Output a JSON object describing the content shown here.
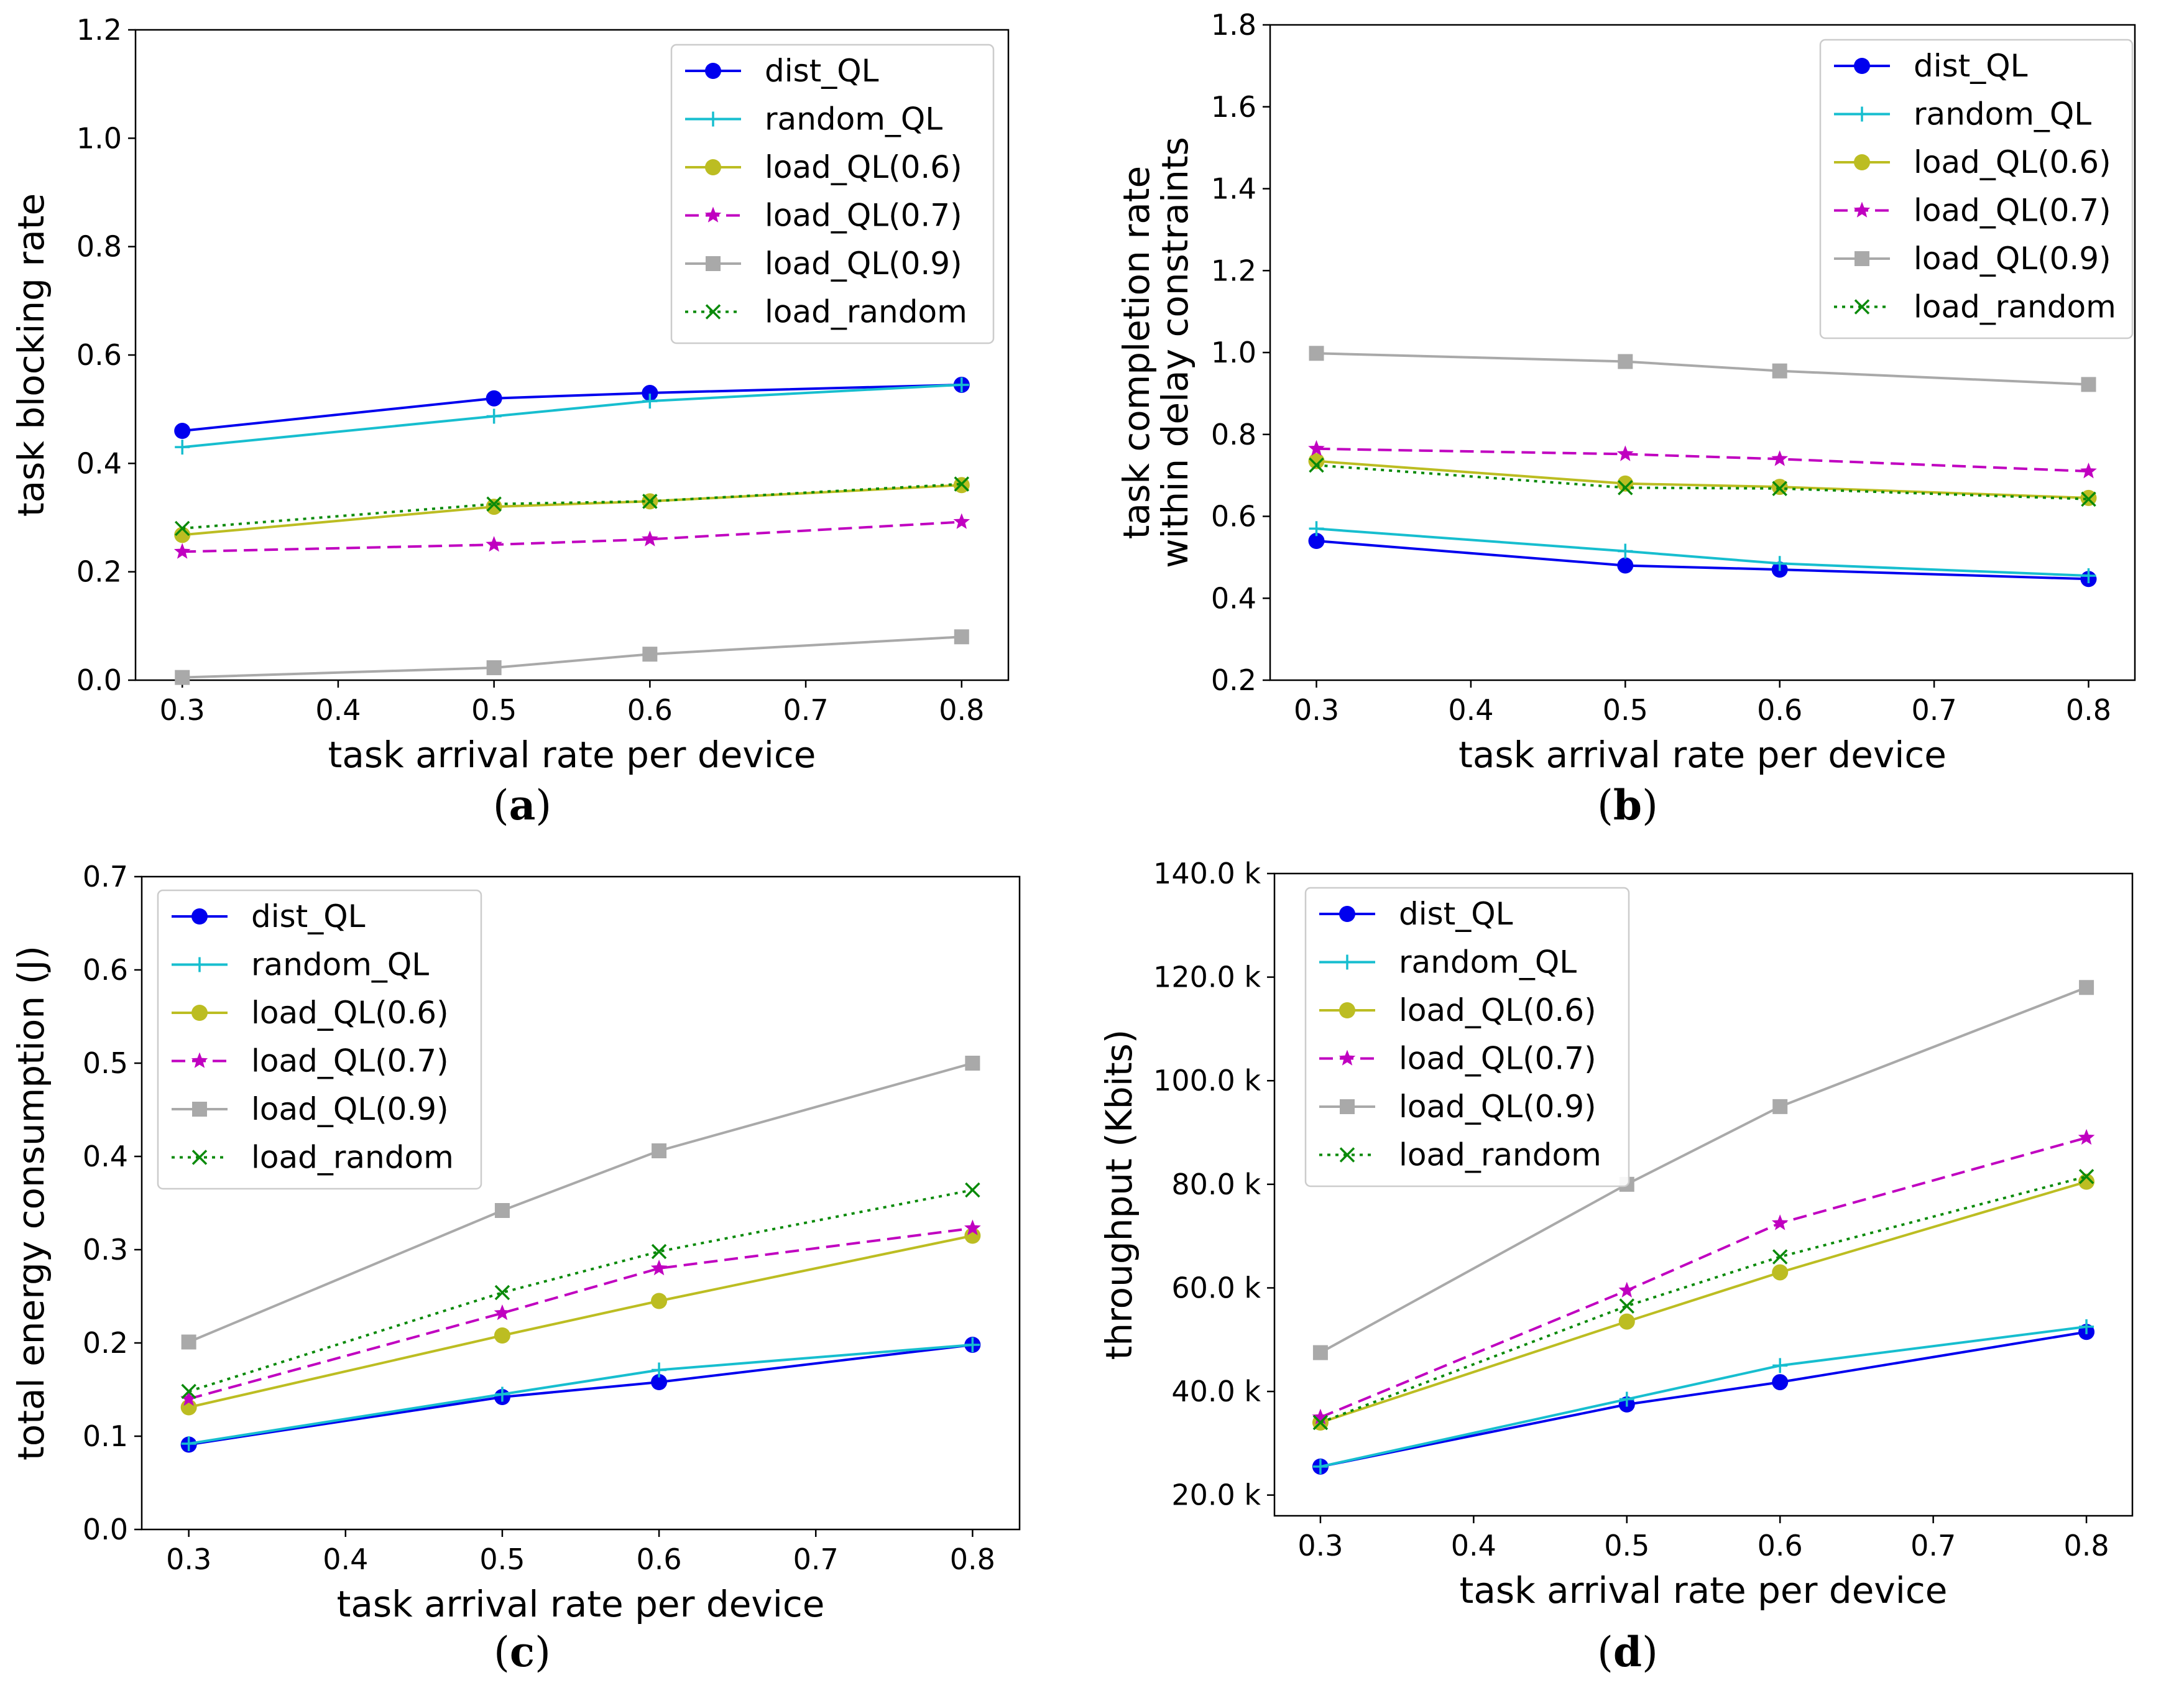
{
  "chart_data": [
    {
      "type": "line",
      "caption": "a",
      "xlabel": "task arrival rate per device",
      "ylabel": [
        "task blocking rate"
      ],
      "x": [
        0.3,
        0.5,
        0.6,
        0.8
      ],
      "xlim": [
        0.27,
        0.83
      ],
      "xticks": [
        0.3,
        0.4,
        0.5,
        0.6,
        0.7,
        0.8
      ],
      "xtick_labels": [
        "0.3",
        "0.4",
        "0.5",
        "0.6",
        "0.7",
        "0.8"
      ],
      "ylim": [
        0.0,
        1.2
      ],
      "yticks": [
        0.0,
        0.2,
        0.4,
        0.6,
        0.8,
        1.0,
        1.2
      ],
      "ytick_labels": [
        "0.0",
        "0.2",
        "0.4",
        "0.6",
        "0.8",
        "1.0",
        "1.2"
      ],
      "legend_loc": "top-right",
      "series": [
        {
          "name": "dist_QL",
          "values": [
            0.46,
            0.52,
            0.53,
            0.545
          ]
        },
        {
          "name": "random_QL",
          "values": [
            0.43,
            0.487,
            0.515,
            0.545
          ]
        },
        {
          "name": "load_QL(0.6)",
          "values": [
            0.268,
            0.32,
            0.33,
            0.36
          ]
        },
        {
          "name": "load_QL(0.7)",
          "values": [
            0.237,
            0.25,
            0.26,
            0.292
          ]
        },
        {
          "name": "load_QL(0.9)",
          "values": [
            0.005,
            0.023,
            0.048,
            0.08
          ]
        },
        {
          "name": "load_random",
          "values": [
            0.28,
            0.325,
            0.33,
            0.362
          ]
        }
      ]
    },
    {
      "type": "line",
      "caption": "b",
      "xlabel": "task arrival rate per device",
      "ylabel": [
        "task completion rate",
        "within delay constraints"
      ],
      "x": [
        0.3,
        0.5,
        0.6,
        0.8
      ],
      "xlim": [
        0.27,
        0.83
      ],
      "xticks": [
        0.3,
        0.4,
        0.5,
        0.6,
        0.7,
        0.8
      ],
      "xtick_labels": [
        "0.3",
        "0.4",
        "0.5",
        "0.6",
        "0.7",
        "0.8"
      ],
      "ylim": [
        0.2,
        1.8
      ],
      "yticks": [
        0.2,
        0.4,
        0.6,
        0.8,
        1.0,
        1.2,
        1.4,
        1.6,
        1.8
      ],
      "ytick_labels": [
        "0.2",
        "0.4",
        "0.6",
        "0.8",
        "1.0",
        "1.2",
        "1.4",
        "1.6",
        "1.8"
      ],
      "legend_loc": "top-right",
      "series": [
        {
          "name": "dist_QL",
          "values": [
            0.54,
            0.48,
            0.47,
            0.447
          ]
        },
        {
          "name": "random_QL",
          "values": [
            0.57,
            0.515,
            0.485,
            0.455
          ]
        },
        {
          "name": "load_QL(0.6)",
          "values": [
            0.735,
            0.68,
            0.672,
            0.645
          ]
        },
        {
          "name": "load_QL(0.7)",
          "values": [
            0.765,
            0.752,
            0.74,
            0.71
          ]
        },
        {
          "name": "load_QL(0.9)",
          "values": [
            0.998,
            0.978,
            0.955,
            0.922
          ]
        },
        {
          "name": "load_random",
          "values": [
            0.725,
            0.67,
            0.668,
            0.642
          ]
        }
      ]
    },
    {
      "type": "line",
      "caption": "c",
      "xlabel": "task arrival rate per device",
      "ylabel": [
        "total energy consumption (J)"
      ],
      "x": [
        0.3,
        0.5,
        0.6,
        0.8
      ],
      "xlim": [
        0.27,
        0.83
      ],
      "xticks": [
        0.3,
        0.4,
        0.5,
        0.6,
        0.7,
        0.8
      ],
      "xtick_labels": [
        "0.3",
        "0.4",
        "0.5",
        "0.6",
        "0.7",
        "0.8"
      ],
      "ylim": [
        0.0,
        0.7
      ],
      "yticks": [
        0.0,
        0.1,
        0.2,
        0.3,
        0.4,
        0.5,
        0.6,
        0.7
      ],
      "ytick_labels": [
        "0.0",
        "0.1",
        "0.2",
        "0.3",
        "0.4",
        "0.5",
        "0.6",
        "0.7"
      ],
      "legend_loc": "top-left",
      "series": [
        {
          "name": "dist_QL",
          "values": [
            0.091,
            0.142,
            0.158,
            0.198
          ]
        },
        {
          "name": "random_QL",
          "values": [
            0.092,
            0.145,
            0.171,
            0.198
          ]
        },
        {
          "name": "load_QL(0.6)",
          "values": [
            0.131,
            0.208,
            0.245,
            0.315
          ]
        },
        {
          "name": "load_QL(0.7)",
          "values": [
            0.14,
            0.232,
            0.28,
            0.323
          ]
        },
        {
          "name": "load_QL(0.9)",
          "values": [
            0.201,
            0.342,
            0.406,
            0.5
          ]
        },
        {
          "name": "load_random",
          "values": [
            0.148,
            0.254,
            0.298,
            0.364
          ]
        }
      ]
    },
    {
      "type": "line",
      "caption": "d",
      "xlabel": "task arrival rate per device",
      "ylabel": [
        "throughput (Kbits)"
      ],
      "x": [
        0.3,
        0.5,
        0.6,
        0.8
      ],
      "xlim": [
        0.27,
        0.83
      ],
      "xticks": [
        0.3,
        0.4,
        0.5,
        0.6,
        0.7,
        0.8
      ],
      "xtick_labels": [
        "0.3",
        "0.4",
        "0.5",
        "0.6",
        "0.7",
        "0.8"
      ],
      "ylim": [
        16.0,
        140.0
      ],
      "yticks": [
        20,
        40,
        60,
        80,
        100,
        120,
        140
      ],
      "ytick_labels": [
        "20.0 k",
        "40.0 k",
        "60.0 k",
        "80.0 k",
        "100.0 k",
        "120.0 k",
        "140.0 k"
      ],
      "legend_loc": "top-left",
      "series": [
        {
          "name": "dist_QL",
          "values": [
            25.5,
            37.5,
            41.8,
            51.5
          ]
        },
        {
          "name": "random_QL",
          "values": [
            25.5,
            38.5,
            45.0,
            52.5
          ]
        },
        {
          "name": "load_QL(0.6)",
          "values": [
            34.0,
            53.5,
            63.0,
            80.5
          ]
        },
        {
          "name": "load_QL(0.7)",
          "values": [
            35.0,
            59.5,
            72.5,
            89.0
          ]
        },
        {
          "name": "load_QL(0.9)",
          "values": [
            47.5,
            80.0,
            95.0,
            118.0
          ]
        },
        {
          "name": "load_random",
          "values": [
            34.0,
            56.5,
            66.0,
            81.5
          ]
        }
      ]
    }
  ],
  "series_styles": [
    {
      "name": "dist_QL",
      "color": "#0000ee",
      "dash": "solid",
      "marker": "circle"
    },
    {
      "name": "random_QL",
      "color": "#17becf",
      "dash": "solid",
      "marker": "plus"
    },
    {
      "name": "load_QL(0.6)",
      "color": "#bcbd22",
      "dash": "solid",
      "marker": "circle"
    },
    {
      "name": "load_QL(0.7)",
      "color": "#c000c0",
      "dash": "dashed",
      "marker": "star"
    },
    {
      "name": "load_QL(0.9)",
      "color": "#a9a9a9",
      "dash": "solid",
      "marker": "square"
    },
    {
      "name": "load_random",
      "color": "#0a8a0a",
      "dash": "dotted",
      "marker": "x"
    }
  ]
}
